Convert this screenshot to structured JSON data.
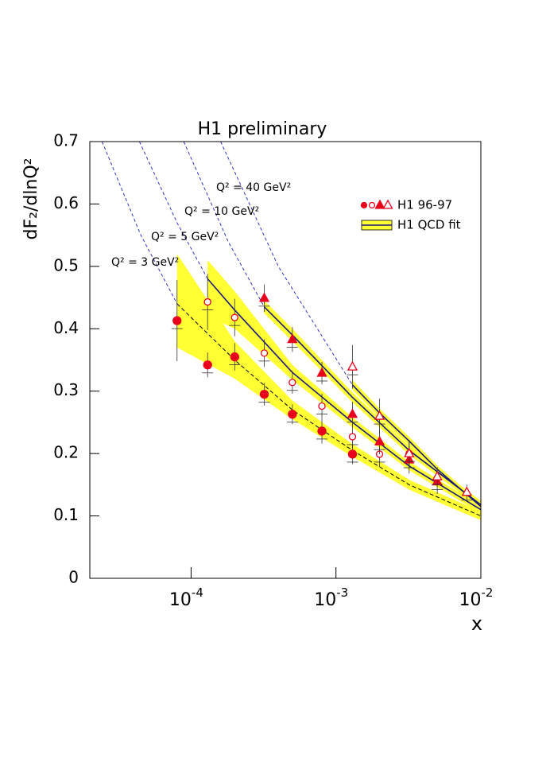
{
  "chart_data": {
    "type": "scatter",
    "title": "H1 preliminary",
    "x_label": "x",
    "y_label": "dF₂/dlnQ²",
    "xlim": [
      2e-05,
      0.01
    ],
    "ylim": [
      0,
      0.7
    ],
    "log_x": true,
    "xticks": [
      {
        "value": 0.0001,
        "label": "10",
        "exponent": "-4"
      },
      {
        "value": 0.001,
        "label": "10",
        "exponent": "-3"
      },
      {
        "value": 0.01,
        "label": "10",
        "exponent": "-2"
      }
    ],
    "yticks": [
      0,
      0.1,
      0.2,
      0.3,
      0.4,
      0.5,
      0.6,
      0.7
    ],
    "legend": [
      "H1 96-97",
      "H1 QCD fit"
    ],
    "legend_corner": "upper right",
    "point_color": "#e8001c",
    "fit_color": "#1a1a80",
    "band_color": "#ffff33",
    "extrapolation_color": "#3333cc",
    "series": [
      {
        "name": "Q² = 3 GeV²",
        "marker": "filled-circle",
        "x": [
          8e-05,
          0.00013,
          0.0002,
          0.00032,
          0.0005,
          0.0008,
          0.0013
        ],
        "values": [
          0.413,
          0.342,
          0.355,
          0.295,
          0.263,
          0.236,
          0.199
        ],
        "errors": [
          0.065,
          0.02,
          0.022,
          0.018,
          0.016,
          0.02,
          0.016
        ],
        "fit_x": [
          8e-05,
          0.0002,
          0.0005,
          0.0013,
          0.0032,
          0.01
        ],
        "fit_values": [
          0.44,
          0.35,
          0.27,
          0.205,
          0.15,
          0.1
        ],
        "fit_dashed": true,
        "fit_lower": [
          0.37,
          0.32,
          0.255,
          0.195,
          0.142,
          0.093
        ],
        "fit_upper": [
          0.52,
          0.38,
          0.285,
          0.215,
          0.158,
          0.107
        ],
        "extrapolation_x": [
          2.43e-05,
          4.5e-05,
          8e-05
        ],
        "extrapolation_values": [
          0.7,
          0.55,
          0.44
        ]
      },
      {
        "name": "Q² = 5 GeV²",
        "marker": "open-circle",
        "x": [
          0.00013,
          0.0002,
          0.00032,
          0.0005,
          0.0008,
          0.0013,
          0.002,
          0.0032
        ],
        "values": [
          0.443,
          0.418,
          0.361,
          0.314,
          0.276,
          0.227,
          0.199,
          0.2
        ],
        "errors": [
          0.045,
          0.03,
          0.022,
          0.018,
          0.02,
          0.018,
          0.02,
          0.02
        ],
        "fit_x": [
          0.00013,
          0.0002,
          0.0005,
          0.0013,
          0.0032,
          0.01
        ],
        "fit_values": [
          0.48,
          0.43,
          0.33,
          0.25,
          0.18,
          0.11
        ],
        "fit_dashed": false,
        "fit_lower": [
          0.42,
          0.4,
          0.318,
          0.242,
          0.173,
          0.104
        ],
        "fit_upper": [
          0.51,
          0.46,
          0.342,
          0.258,
          0.187,
          0.116
        ],
        "extrapolation_x": [
          4.4e-05,
          8e-05,
          0.00013
        ],
        "extrapolation_values": [
          0.7,
          0.57,
          0.48
        ]
      },
      {
        "name": "Q² = 10 GeV²",
        "marker": "filled-triangle",
        "x": [
          0.00032,
          0.0005,
          0.0008,
          0.0013,
          0.002,
          0.0032,
          0.005
        ],
        "values": [
          0.449,
          0.383,
          0.329,
          0.263,
          0.219,
          0.19,
          0.155
        ],
        "errors": [
          0.022,
          0.02,
          0.018,
          0.02,
          0.02,
          0.022,
          0.02
        ],
        "fit_x": [
          0.00032,
          0.0005,
          0.0013,
          0.0032,
          0.01
        ],
        "fit_values": [
          0.435,
          0.39,
          0.29,
          0.205,
          0.118
        ],
        "fit_dashed": false,
        "fit_lower": [
          0.425,
          0.38,
          0.282,
          0.198,
          0.112
        ],
        "fit_upper": [
          0.445,
          0.4,
          0.298,
          0.212,
          0.124
        ],
        "extrapolation_x": [
          8.9e-05,
          0.00018,
          0.00032
        ],
        "extrapolation_values": [
          0.7,
          0.54,
          0.435
        ]
      },
      {
        "name": "Q² = 40 GeV²",
        "marker": "open-triangle",
        "x": [
          0.0013,
          0.002,
          0.0032,
          0.005,
          0.008
        ],
        "values": [
          0.339,
          0.26,
          0.2,
          0.163,
          0.138
        ],
        "errors": [
          0.035,
          0.028,
          0.022,
          0.015,
          0.012
        ],
        "fit_x": [
          0.0013,
          0.002,
          0.0032,
          0.005,
          0.01
        ],
        "fit_values": [
          0.31,
          0.265,
          0.22,
          0.175,
          0.115
        ],
        "fit_dashed": false,
        "fit_lower": [
          0.302,
          0.258,
          0.213,
          0.169,
          0.109
        ],
        "fit_upper": [
          0.318,
          0.272,
          0.227,
          0.181,
          0.121
        ],
        "extrapolation_x": [
          0.00016,
          0.0004,
          0.0013
        ],
        "extrapolation_values": [
          0.7,
          0.5,
          0.31
        ]
      }
    ]
  }
}
